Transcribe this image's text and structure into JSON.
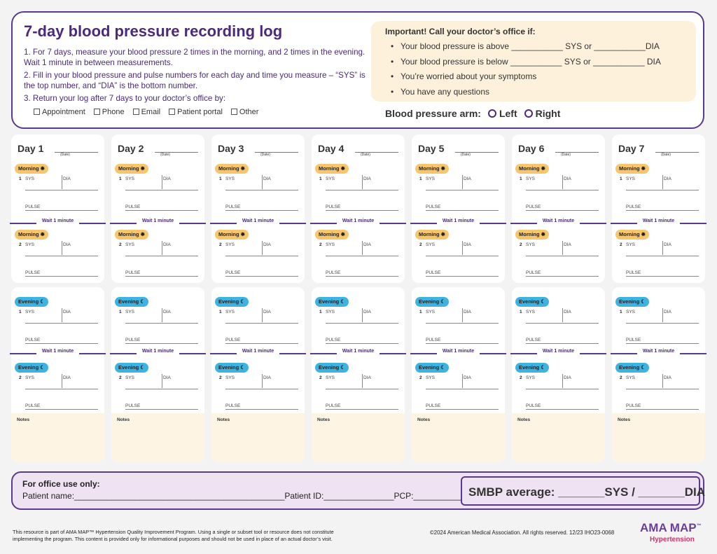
{
  "header": {
    "title": "7-day blood pressure recording log",
    "instructions": [
      "1. For 7 days, measure your blood pressure 2 times in the morning, and 2 times in the evening. Wait 1 minute in between measurements.",
      "2. Fill in your blood pressure and pulse numbers for each day and time you measure – “SYS” is the top number, and “DIA” is the bottom number.",
      "3. Return your log after 7 days to your doctor’s office by:"
    ],
    "return_methods": [
      "Appointment",
      "Phone",
      "Email",
      "Patient portal",
      "Other"
    ]
  },
  "important": {
    "heading": "Important! Call your doctor’s office if:",
    "items": [
      "Your blood pressure is above ___________ SYS or ___________DIA",
      "Your blood pressure is below  ___________ SYS or  ___________ DIA",
      "You’re worried about your symptoms",
      "You have any questions"
    ]
  },
  "bp_arm": {
    "label": "Blood pressure arm:",
    "options": [
      "Left",
      "Right"
    ]
  },
  "days": [
    {
      "label": "Day 1"
    },
    {
      "label": "Day 2"
    },
    {
      "label": "Day 3"
    },
    {
      "label": "Day 4"
    },
    {
      "label": "Day 5"
    },
    {
      "label": "Day 6"
    },
    {
      "label": "Day 7"
    }
  ],
  "day_labels": {
    "date": "(Date)",
    "morning": "Morning",
    "evening": "Evening",
    "sys": "SYS",
    "dia": "DIA",
    "pulse": "PULSE",
    "wait": "Wait 1 minute",
    "notes": "Notes",
    "reading1": "1",
    "reading2": "2"
  },
  "office": {
    "heading": "For office use only:",
    "fields": "Patient name:_____________________________________________Patient ID:_______________PCP:_______________",
    "smbp": "SMBP average: _______SYS / _______DIA"
  },
  "footer": {
    "disclaimer": "This resource is part of AMA MAP™ Hypertension Quality Improvement Program. Using a single or subset tool or resource does not constitute implementing the program. This content is provided only for informational purposes and should not be used in place of an actual doctor’s visit.",
    "copyright": "©2024  American Medical Association. All rights reserved. 12/23 IHO23-0068",
    "logo": "AMA MAP",
    "logo_tm": "™",
    "logo_sub": "Hypertension"
  }
}
